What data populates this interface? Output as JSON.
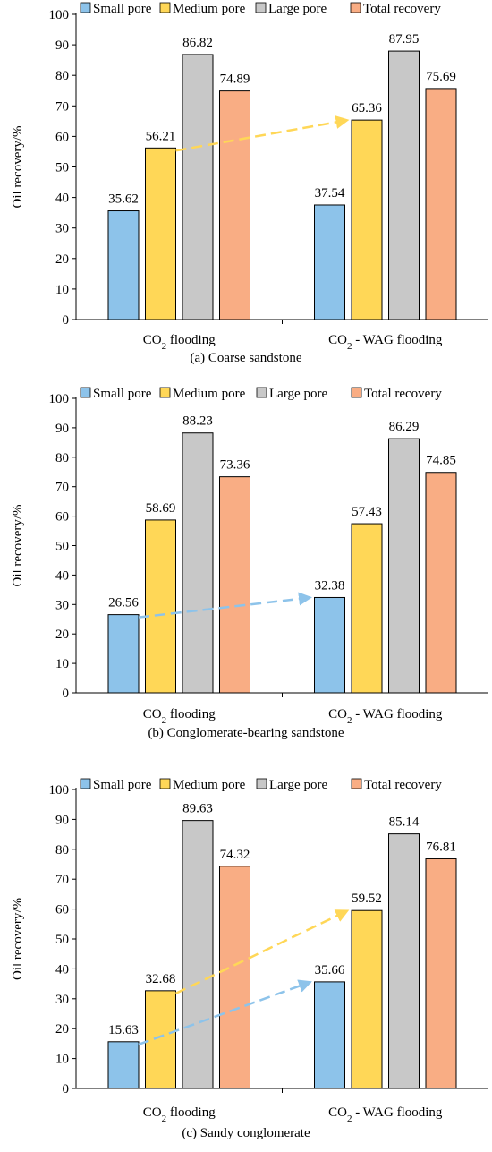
{
  "legend": [
    "Small pore",
    "Medium pore",
    "Large pore",
    "Total recovery"
  ],
  "colors": {
    "small": "#8dc3ea",
    "medium": "#ffd757",
    "large": "#c8c8c8",
    "total": "#f9ad84",
    "arrow_yellow": "#ffd757",
    "arrow_blue": "#8dc3ea"
  },
  "chart_data": [
    {
      "type": "bar",
      "caption": "(a) Coarse sandstone",
      "ylabel": "Oil recovery/%",
      "ylim": [
        0,
        100
      ],
      "yticks": [
        0,
        10,
        20,
        30,
        40,
        50,
        60,
        70,
        80,
        90,
        100
      ],
      "categories": [
        {
          "main": "CO",
          "sub": "2",
          "rest": " flooding"
        },
        {
          "main": "CO",
          "sub": "2",
          "rest": " - WAG flooding"
        }
      ],
      "series": [
        {
          "name": "Small pore",
          "values": [
            35.62,
            37.54
          ]
        },
        {
          "name": "Medium pore",
          "values": [
            56.21,
            65.36
          ]
        },
        {
          "name": "Large pore",
          "values": [
            86.82,
            87.95
          ]
        },
        {
          "name": "Total recovery",
          "values": [
            74.89,
            75.69
          ]
        }
      ],
      "labels": [
        [
          "35.62",
          "37.54"
        ],
        [
          "56.21",
          "65.36"
        ],
        [
          "86.82",
          "87.95"
        ],
        [
          "74.89",
          "75.69"
        ]
      ],
      "arrows": [
        {
          "series": 1,
          "color": "arrow_yellow"
        }
      ]
    },
    {
      "type": "bar",
      "caption": "(b) Conglomerate-bearing sandstone",
      "ylabel": "Oil recovery/%",
      "ylim": [
        0,
        100
      ],
      "yticks": [
        0,
        10,
        20,
        30,
        40,
        50,
        60,
        70,
        80,
        90,
        100
      ],
      "categories": [
        {
          "main": "CO",
          "sub": "2",
          "rest": " flooding"
        },
        {
          "main": "CO",
          "sub": "2",
          "rest": " - WAG flooding"
        }
      ],
      "series": [
        {
          "name": "Small pore",
          "values": [
            26.56,
            32.38
          ]
        },
        {
          "name": "Medium pore",
          "values": [
            58.69,
            57.43
          ]
        },
        {
          "name": "Large pore",
          "values": [
            88.23,
            86.29
          ]
        },
        {
          "name": "Total recovery",
          "values": [
            73.36,
            74.85
          ]
        }
      ],
      "labels": [
        [
          "26.56",
          "32.38"
        ],
        [
          "58.69",
          "57.43"
        ],
        [
          "88.23",
          "86.29"
        ],
        [
          "73.36",
          "74.85"
        ]
      ],
      "arrows": [
        {
          "series": 0,
          "color": "arrow_blue"
        }
      ]
    },
    {
      "type": "bar",
      "caption": "(c) Sandy conglomerate",
      "ylabel": "Oil recovery/%",
      "ylim": [
        0,
        100
      ],
      "yticks": [
        0,
        10,
        20,
        30,
        40,
        50,
        60,
        70,
        80,
        90,
        100
      ],
      "categories": [
        {
          "main": "CO",
          "sub": "2",
          "rest": " flooding"
        },
        {
          "main": "CO",
          "sub": "2",
          "rest": " - WAG flooding"
        }
      ],
      "series": [
        {
          "name": "Small pore",
          "values": [
            15.63,
            35.66
          ]
        },
        {
          "name": "Medium pore",
          "values": [
            32.68,
            59.52
          ]
        },
        {
          "name": "Large pore",
          "values": [
            89.63,
            85.14
          ]
        },
        {
          "name": "Total recovery",
          "values": [
            74.32,
            76.81
          ]
        }
      ],
      "labels": [
        [
          "15.63",
          "35.66"
        ],
        [
          "32.68",
          "59.52"
        ],
        [
          "89.63",
          "85.14"
        ],
        [
          "74.32",
          "76.81"
        ]
      ],
      "arrows": [
        {
          "series": 1,
          "color": "arrow_yellow"
        },
        {
          "series": 0,
          "color": "arrow_blue"
        }
      ]
    }
  ]
}
